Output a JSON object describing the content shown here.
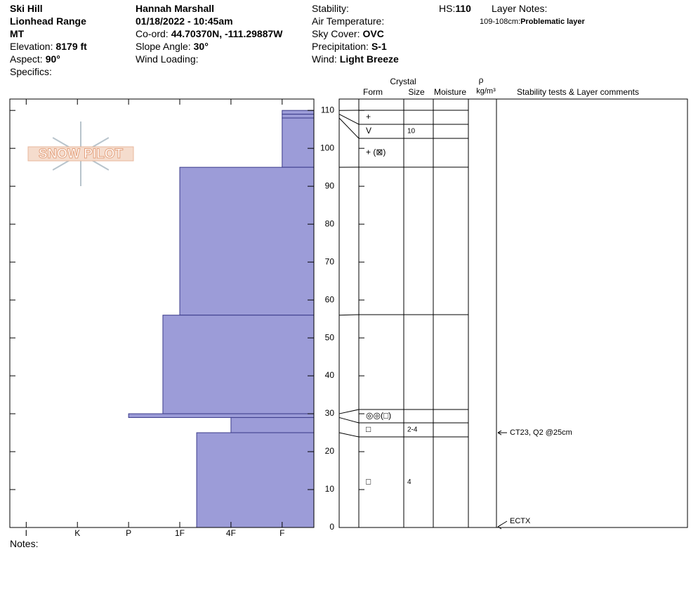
{
  "header": {
    "columns": [
      [
        {
          "value": "Ski Hill"
        },
        {
          "value": "Lionhead Range"
        },
        {
          "value": "MT"
        },
        {
          "label": "Elevation:",
          "value": "8179 ft"
        },
        {
          "label": "Aspect:",
          "value": "90°"
        },
        {
          "label": "Specifics:"
        }
      ],
      [
        {
          "value": "Hannah Marshall"
        },
        {
          "value": "01/18/2022 - 10:45am"
        },
        {
          "label": "Co-ord:",
          "value": "44.70370N, -111.29887W"
        },
        {
          "label": "Slope Angle:",
          "value": "30°"
        },
        {
          "label": "Wind Loading:"
        }
      ],
      [
        {
          "label": "Stability:"
        },
        {
          "label": "Air Temperature:"
        },
        {
          "label": "Sky Cover:",
          "value": "OVC"
        },
        {
          "label": "Precipitation:",
          "value": "S-1"
        },
        {
          "label": "Wind:",
          "value": "Light Breeze"
        }
      ]
    ],
    "hs": {
      "label": "HS:",
      "value": 110
    },
    "layer_notes": {
      "title": "Layer Notes:",
      "items": [
        {
          "depth": "109-108cm:",
          "text": "Problematic layer"
        }
      ]
    }
  },
  "logo": "SNOW PILOT",
  "notes": "Notes:",
  "table_headers": {
    "crystal": "Crystal",
    "form": "Form",
    "size": "Size",
    "moisture": "Moisture",
    "density": "ρ",
    "density_unit": "kg/m³",
    "comments": "Stability tests & Layer comments"
  },
  "chart_data": {
    "type": "snow-profile",
    "ylim": [
      0,
      113
    ],
    "yticks": [
      0,
      10,
      20,
      30,
      40,
      50,
      60,
      70,
      80,
      90,
      100,
      110
    ],
    "xlim": [
      -0.32,
      5.62
    ],
    "xticks": [
      {
        "value": 0,
        "label": "I"
      },
      {
        "value": 1,
        "label": "K"
      },
      {
        "value": 2,
        "label": "P"
      },
      {
        "value": 3,
        "label": "1F"
      },
      {
        "value": 4,
        "label": "4F"
      },
      {
        "value": 5,
        "label": "F"
      }
    ],
    "color": "#9c9cd8",
    "layers": [
      {
        "top": 110,
        "bottom": 109,
        "hardness": 5,
        "form": "+"
      },
      {
        "top": 109,
        "bottom": 108,
        "hardness": 5,
        "form": "V",
        "size": "10"
      },
      {
        "top": 108,
        "bottom": 95,
        "hardness": 5,
        "form": "+ (⊠)"
      },
      {
        "top": 95,
        "bottom": 56,
        "hardness": 3
      },
      {
        "top": 56,
        "bottom": 30,
        "hardness": 2.67
      },
      {
        "top": 30,
        "bottom": 29,
        "hardness": 2,
        "form": "◎◎(□)"
      },
      {
        "top": 29,
        "bottom": 25,
        "hardness": 4,
        "form": "□",
        "size": "2-4"
      },
      {
        "top": 25,
        "bottom": 0,
        "hardness": 3.33,
        "form": "□",
        "size": "4"
      }
    ],
    "tests": [
      {
        "depth": 25,
        "label": "CT23, Q2 @25cm"
      },
      {
        "depth": 0,
        "label": "ECTX"
      }
    ]
  }
}
